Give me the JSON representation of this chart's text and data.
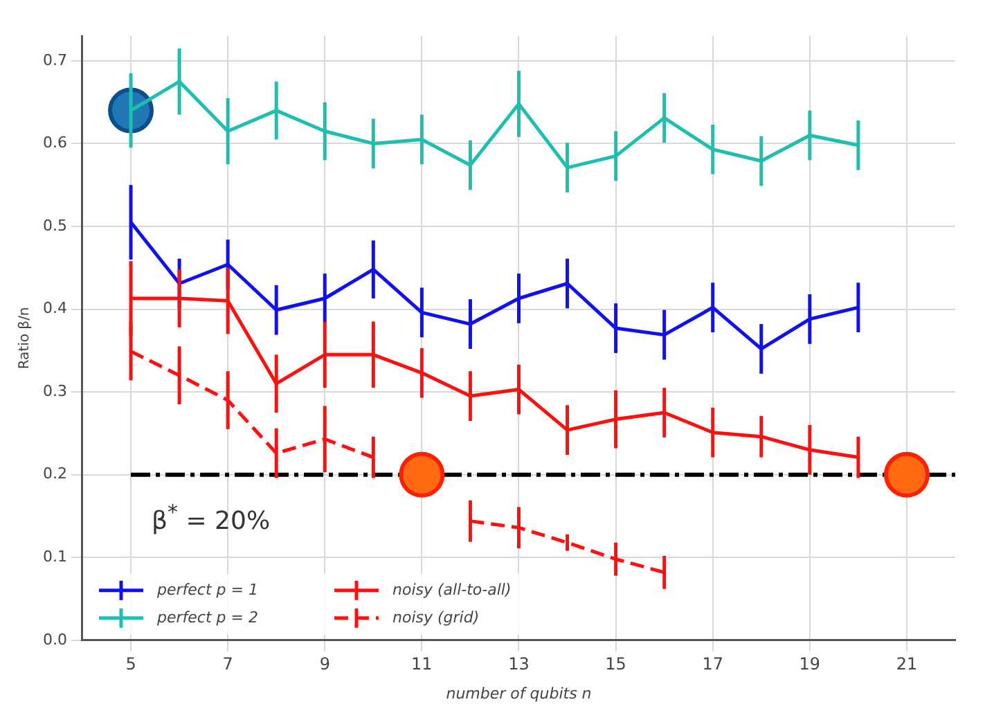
{
  "chart_data": {
    "type": "line",
    "xlabel": "number of qubits n",
    "ylabel": "Ratio β/n",
    "x": [
      5,
      6,
      7,
      8,
      9,
      10,
      11,
      12,
      13,
      14,
      15,
      16,
      17,
      18,
      19,
      20
    ],
    "series": [
      {
        "name": "perfect p = 1",
        "color": "#1010f0",
        "values": [
          0.505,
          0.431,
          0.454,
          0.399,
          0.413,
          0.448,
          0.396,
          0.382,
          0.413,
          0.431,
          0.377,
          0.369,
          0.402,
          0.352,
          0.388,
          0.402
        ],
        "errors": [
          0.045,
          0.03,
          0.03,
          0.03,
          0.03,
          0.035,
          0.03,
          0.03,
          0.03,
          0.03,
          0.03,
          0.03,
          0.03,
          0.03,
          0.03,
          0.03
        ]
      },
      {
        "name": "perfect p = 2",
        "color": "#1fbfb0",
        "values": [
          0.64,
          0.675,
          0.615,
          0.64,
          0.615,
          0.6,
          0.605,
          0.574,
          0.648,
          0.571,
          0.585,
          0.631,
          0.593,
          0.579,
          0.61,
          0.598
        ],
        "errors": [
          0.045,
          0.04,
          0.04,
          0.035,
          0.035,
          0.03,
          0.03,
          0.03,
          0.04,
          0.03,
          0.03,
          0.03,
          0.03,
          0.03,
          0.03,
          0.03
        ]
      },
      {
        "name": "noisy (all-to-all)",
        "color": "#ff1010",
        "values": [
          0.413,
          0.413,
          0.41,
          0.31,
          0.345,
          0.345,
          0.323,
          0.295,
          0.303,
          0.254,
          0.267,
          0.275,
          0.251,
          0.246,
          0.23,
          0.221
        ],
        "errors": [
          0.045,
          0.035,
          0.04,
          0.035,
          0.04,
          0.04,
          0.03,
          0.03,
          0.03,
          0.03,
          0.035,
          0.03,
          0.03,
          0.025,
          0.03,
          0.025
        ]
      },
      {
        "name": "noisy (grid)",
        "color": "#ff1010",
        "line_style": "dashed",
        "x": [
          5,
          6,
          7,
          8,
          9,
          10,
          11,
          12,
          13,
          14,
          15,
          16
        ],
        "values": [
          0.349,
          0.32,
          0.29,
          0.226,
          0.243,
          0.221,
          null,
          0.144,
          0.136,
          0.118,
          0.098,
          0.082
        ],
        "errors": [
          0.035,
          0.035,
          0.035,
          0.03,
          0.04,
          0.025,
          null,
          0.025,
          0.025,
          0.01,
          0.02,
          0.02
        ]
      },
      {
        "type": "scatter",
        "marker": "circle",
        "color": "#ff6a13",
        "x": [
          11,
          21
        ],
        "values": [
          0.2,
          0.2
        ]
      },
      {
        "type": "scatter",
        "marker": "circle",
        "color": "#1f77b4",
        "x": [
          5
        ],
        "values": [
          0.64
        ]
      }
    ],
    "ref_lines": [
      {
        "axis": "y",
        "value": 0.2,
        "color": "#000000",
        "line_style": "dashdot"
      }
    ],
    "annotations": [
      "β$^{*}$ = 20%"
    ],
    "xlim": [
      4,
      22
    ],
    "xticks": [
      5,
      7,
      9,
      11,
      13,
      15,
      17,
      19,
      21
    ],
    "ylim": [
      0,
      0.73
    ],
    "yticks": [
      {
        "value": 0,
        "label": "0.0"
      },
      0.1,
      0.2,
      0.3,
      0.4,
      0.5,
      0.6,
      0.7
    ],
    "grid": true,
    "legend": "bottom left",
    "marker": "none",
    "line_style": "solid"
  }
}
